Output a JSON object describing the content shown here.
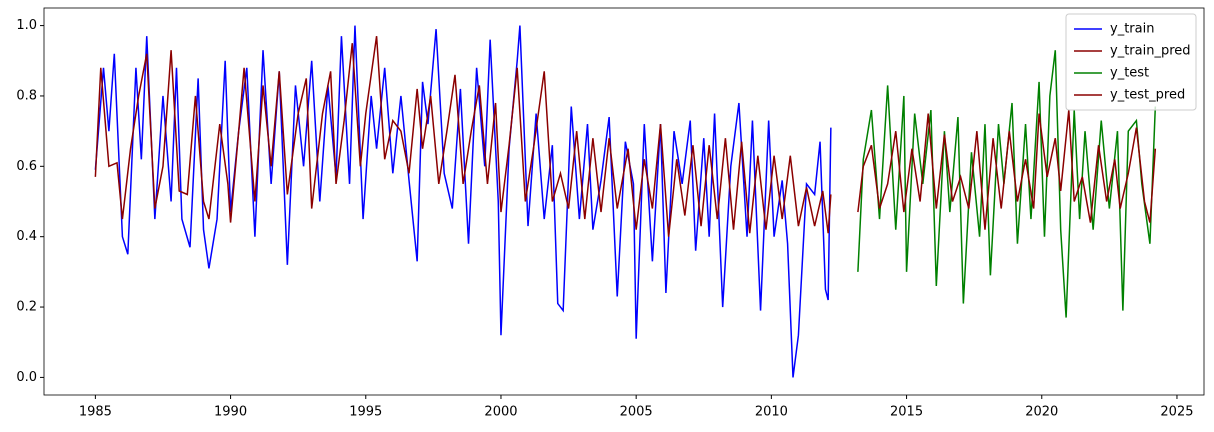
{
  "chart_data": {
    "type": "line",
    "xlim": [
      1983.1,
      2026.0
    ],
    "ylim": [
      -0.05,
      1.05
    ],
    "xticks": [
      1985,
      1990,
      1995,
      2000,
      2005,
      2010,
      2015,
      2020,
      2025
    ],
    "yticks": [
      {
        "value": 0,
        "label": "0.0"
      },
      0.2,
      0.4,
      0.6,
      0.8,
      {
        "value": 1,
        "label": "1.0"
      }
    ],
    "legend": "upper right",
    "series": [
      {
        "name": "y_train",
        "color": "#0000ff",
        "x": [
          1985.0,
          1985.3,
          1985.5,
          1985.7,
          1986.0,
          1986.2,
          1986.5,
          1986.7,
          1986.9,
          1987.2,
          1987.5,
          1987.8,
          1988.0,
          1988.2,
          1988.5,
          1988.8,
          1989.0,
          1989.2,
          1989.5,
          1989.8,
          1990.0,
          1990.3,
          1990.6,
          1990.9,
          1991.2,
          1991.5,
          1991.8,
          1992.1,
          1992.4,
          1992.7,
          1993.0,
          1993.3,
          1993.6,
          1993.9,
          1994.1,
          1994.4,
          1994.6,
          1994.9,
          1995.2,
          1995.4,
          1995.7,
          1996.0,
          1996.3,
          1996.6,
          1996.9,
          1997.1,
          1997.3,
          1997.6,
          1997.9,
          1998.2,
          1998.5,
          1998.8,
          1999.1,
          1999.4,
          1999.6,
          1999.9,
          2000.0,
          2000.3,
          2000.6,
          2000.7,
          2001.0,
          2001.3,
          2001.6,
          2001.9,
          2002.1,
          2002.3,
          2002.6,
          2002.9,
          2003.2,
          2003.4,
          2003.7,
          2004.0,
          2004.3,
          2004.6,
          2004.9,
          2005.0,
          2005.3,
          2005.6,
          2005.9,
          2006.1,
          2006.4,
          2006.7,
          2007.0,
          2007.2,
          2007.5,
          2007.7,
          2007.9,
          2008.2,
          2008.5,
          2008.8,
          2009.1,
          2009.3,
          2009.6,
          2009.9,
          2010.1,
          2010.4,
          2010.6,
          2010.8,
          2011.0,
          2011.3,
          2011.6,
          2011.8,
          2012.0,
          2012.1,
          2012.2
        ],
        "values": [
          0.59,
          0.88,
          0.7,
          0.92,
          0.4,
          0.35,
          0.88,
          0.62,
          0.97,
          0.45,
          0.8,
          0.5,
          0.88,
          0.45,
          0.37,
          0.85,
          0.42,
          0.31,
          0.45,
          0.9,
          0.47,
          0.7,
          0.88,
          0.4,
          0.93,
          0.55,
          0.87,
          0.32,
          0.83,
          0.6,
          0.9,
          0.5,
          0.83,
          0.57,
          0.97,
          0.55,
          1.0,
          0.45,
          0.8,
          0.65,
          0.88,
          0.58,
          0.8,
          0.56,
          0.33,
          0.84,
          0.72,
          0.99,
          0.58,
          0.48,
          0.82,
          0.38,
          0.88,
          0.6,
          0.96,
          0.5,
          0.12,
          0.65,
          0.9,
          1.0,
          0.43,
          0.75,
          0.45,
          0.66,
          0.21,
          0.19,
          0.77,
          0.45,
          0.72,
          0.42,
          0.56,
          0.74,
          0.23,
          0.67,
          0.55,
          0.11,
          0.72,
          0.33,
          0.72,
          0.24,
          0.7,
          0.55,
          0.73,
          0.36,
          0.68,
          0.4,
          0.75,
          0.2,
          0.6,
          0.78,
          0.4,
          0.73,
          0.19,
          0.73,
          0.4,
          0.56,
          0.38,
          0.0,
          0.12,
          0.55,
          0.52,
          0.67,
          0.25,
          0.22,
          0.71
        ]
      },
      {
        "name": "y_train_pred",
        "color": "#8b0000",
        "x": [
          1985.0,
          1985.2,
          1985.5,
          1985.8,
          1986.0,
          1986.3,
          1986.6,
          1986.9,
          1987.2,
          1987.5,
          1987.8,
          1988.1,
          1988.4,
          1988.7,
          1989.0,
          1989.2,
          1989.6,
          1989.9,
          1990.0,
          1990.3,
          1990.5,
          1990.9,
          1991.2,
          1991.5,
          1991.8,
          1992.1,
          1992.5,
          1992.8,
          1993.0,
          1993.4,
          1993.7,
          1993.9,
          1994.2,
          1994.5,
          1994.8,
          1995.0,
          1995.4,
          1995.7,
          1996.0,
          1996.3,
          1996.6,
          1996.9,
          1997.1,
          1997.4,
          1997.7,
          1998.0,
          1998.3,
          1998.6,
          1998.9,
          1999.2,
          1999.5,
          1999.8,
          2000.0,
          2000.3,
          2000.6,
          2000.9,
          2001.2,
          2001.6,
          2001.9,
          2002.2,
          2002.5,
          2002.8,
          2003.1,
          2003.4,
          2003.7,
          2004.0,
          2004.3,
          2004.7,
          2005.0,
          2005.3,
          2005.6,
          2005.9,
          2006.2,
          2006.5,
          2006.8,
          2007.1,
          2007.4,
          2007.7,
          2008.0,
          2008.3,
          2008.6,
          2008.9,
          2009.2,
          2009.5,
          2009.8,
          2010.1,
          2010.4,
          2010.7,
          2011.0,
          2011.3,
          2011.6,
          2011.9,
          2012.1,
          2012.2
        ],
        "values": [
          0.57,
          0.88,
          0.6,
          0.61,
          0.45,
          0.65,
          0.8,
          0.92,
          0.48,
          0.6,
          0.93,
          0.53,
          0.52,
          0.8,
          0.5,
          0.45,
          0.72,
          0.55,
          0.44,
          0.7,
          0.88,
          0.5,
          0.83,
          0.6,
          0.87,
          0.52,
          0.75,
          0.85,
          0.48,
          0.75,
          0.87,
          0.55,
          0.73,
          0.95,
          0.6,
          0.75,
          0.97,
          0.62,
          0.73,
          0.7,
          0.58,
          0.82,
          0.65,
          0.8,
          0.55,
          0.7,
          0.86,
          0.55,
          0.7,
          0.83,
          0.55,
          0.78,
          0.47,
          0.66,
          0.88,
          0.5,
          0.65,
          0.87,
          0.5,
          0.58,
          0.48,
          0.7,
          0.45,
          0.68,
          0.47,
          0.68,
          0.48,
          0.65,
          0.42,
          0.62,
          0.48,
          0.72,
          0.4,
          0.62,
          0.46,
          0.66,
          0.43,
          0.66,
          0.45,
          0.68,
          0.42,
          0.67,
          0.41,
          0.63,
          0.42,
          0.63,
          0.45,
          0.63,
          0.43,
          0.54,
          0.43,
          0.53,
          0.41,
          0.52
        ]
      },
      {
        "name": "y_test",
        "color": "#008000",
        "x": [
          2013.2,
          2013.4,
          2013.7,
          2014.0,
          2014.3,
          2014.6,
          2014.9,
          2015.0,
          2015.3,
          2015.6,
          2015.9,
          2016.1,
          2016.4,
          2016.6,
          2016.9,
          2017.1,
          2017.4,
          2017.7,
          2017.9,
          2018.1,
          2018.4,
          2018.6,
          2018.9,
          2019.1,
          2019.4,
          2019.6,
          2019.9,
          2020.1,
          2020.3,
          2020.5,
          2020.7,
          2020.9,
          2021.2,
          2021.4,
          2021.6,
          2021.9,
          2022.2,
          2022.5,
          2022.8,
          2023.0,
          2023.2,
          2023.5,
          2023.7,
          2024.0,
          2024.2
        ],
        "values": [
          0.3,
          0.62,
          0.76,
          0.45,
          0.83,
          0.42,
          0.8,
          0.3,
          0.75,
          0.55,
          0.76,
          0.26,
          0.7,
          0.47,
          0.74,
          0.21,
          0.64,
          0.4,
          0.72,
          0.29,
          0.72,
          0.55,
          0.78,
          0.38,
          0.72,
          0.45,
          0.84,
          0.4,
          0.8,
          0.93,
          0.42,
          0.17,
          0.76,
          0.45,
          0.7,
          0.42,
          0.73,
          0.48,
          0.7,
          0.19,
          0.7,
          0.73,
          0.55,
          0.38,
          0.77
        ]
      },
      {
        "name": "y_test_pred",
        "color": "#8b0000",
        "x": [
          2013.2,
          2013.4,
          2013.7,
          2014.0,
          2014.3,
          2014.6,
          2014.9,
          2015.2,
          2015.5,
          2015.8,
          2016.1,
          2016.4,
          2016.7,
          2017.0,
          2017.3,
          2017.6,
          2017.9,
          2018.2,
          2018.5,
          2018.8,
          2019.1,
          2019.4,
          2019.7,
          2019.9,
          2020.2,
          2020.5,
          2020.7,
          2021.0,
          2021.2,
          2021.5,
          2021.8,
          2022.1,
          2022.4,
          2022.7,
          2022.9,
          2023.2,
          2023.5,
          2023.8,
          2024.0,
          2024.2
        ],
        "values": [
          0.47,
          0.6,
          0.66,
          0.48,
          0.55,
          0.7,
          0.47,
          0.65,
          0.5,
          0.75,
          0.48,
          0.69,
          0.5,
          0.57,
          0.48,
          0.7,
          0.42,
          0.68,
          0.48,
          0.7,
          0.5,
          0.62,
          0.48,
          0.75,
          0.57,
          0.68,
          0.53,
          0.76,
          0.5,
          0.57,
          0.44,
          0.66,
          0.5,
          0.62,
          0.48,
          0.58,
          0.71,
          0.5,
          0.44,
          0.65
        ]
      }
    ]
  }
}
